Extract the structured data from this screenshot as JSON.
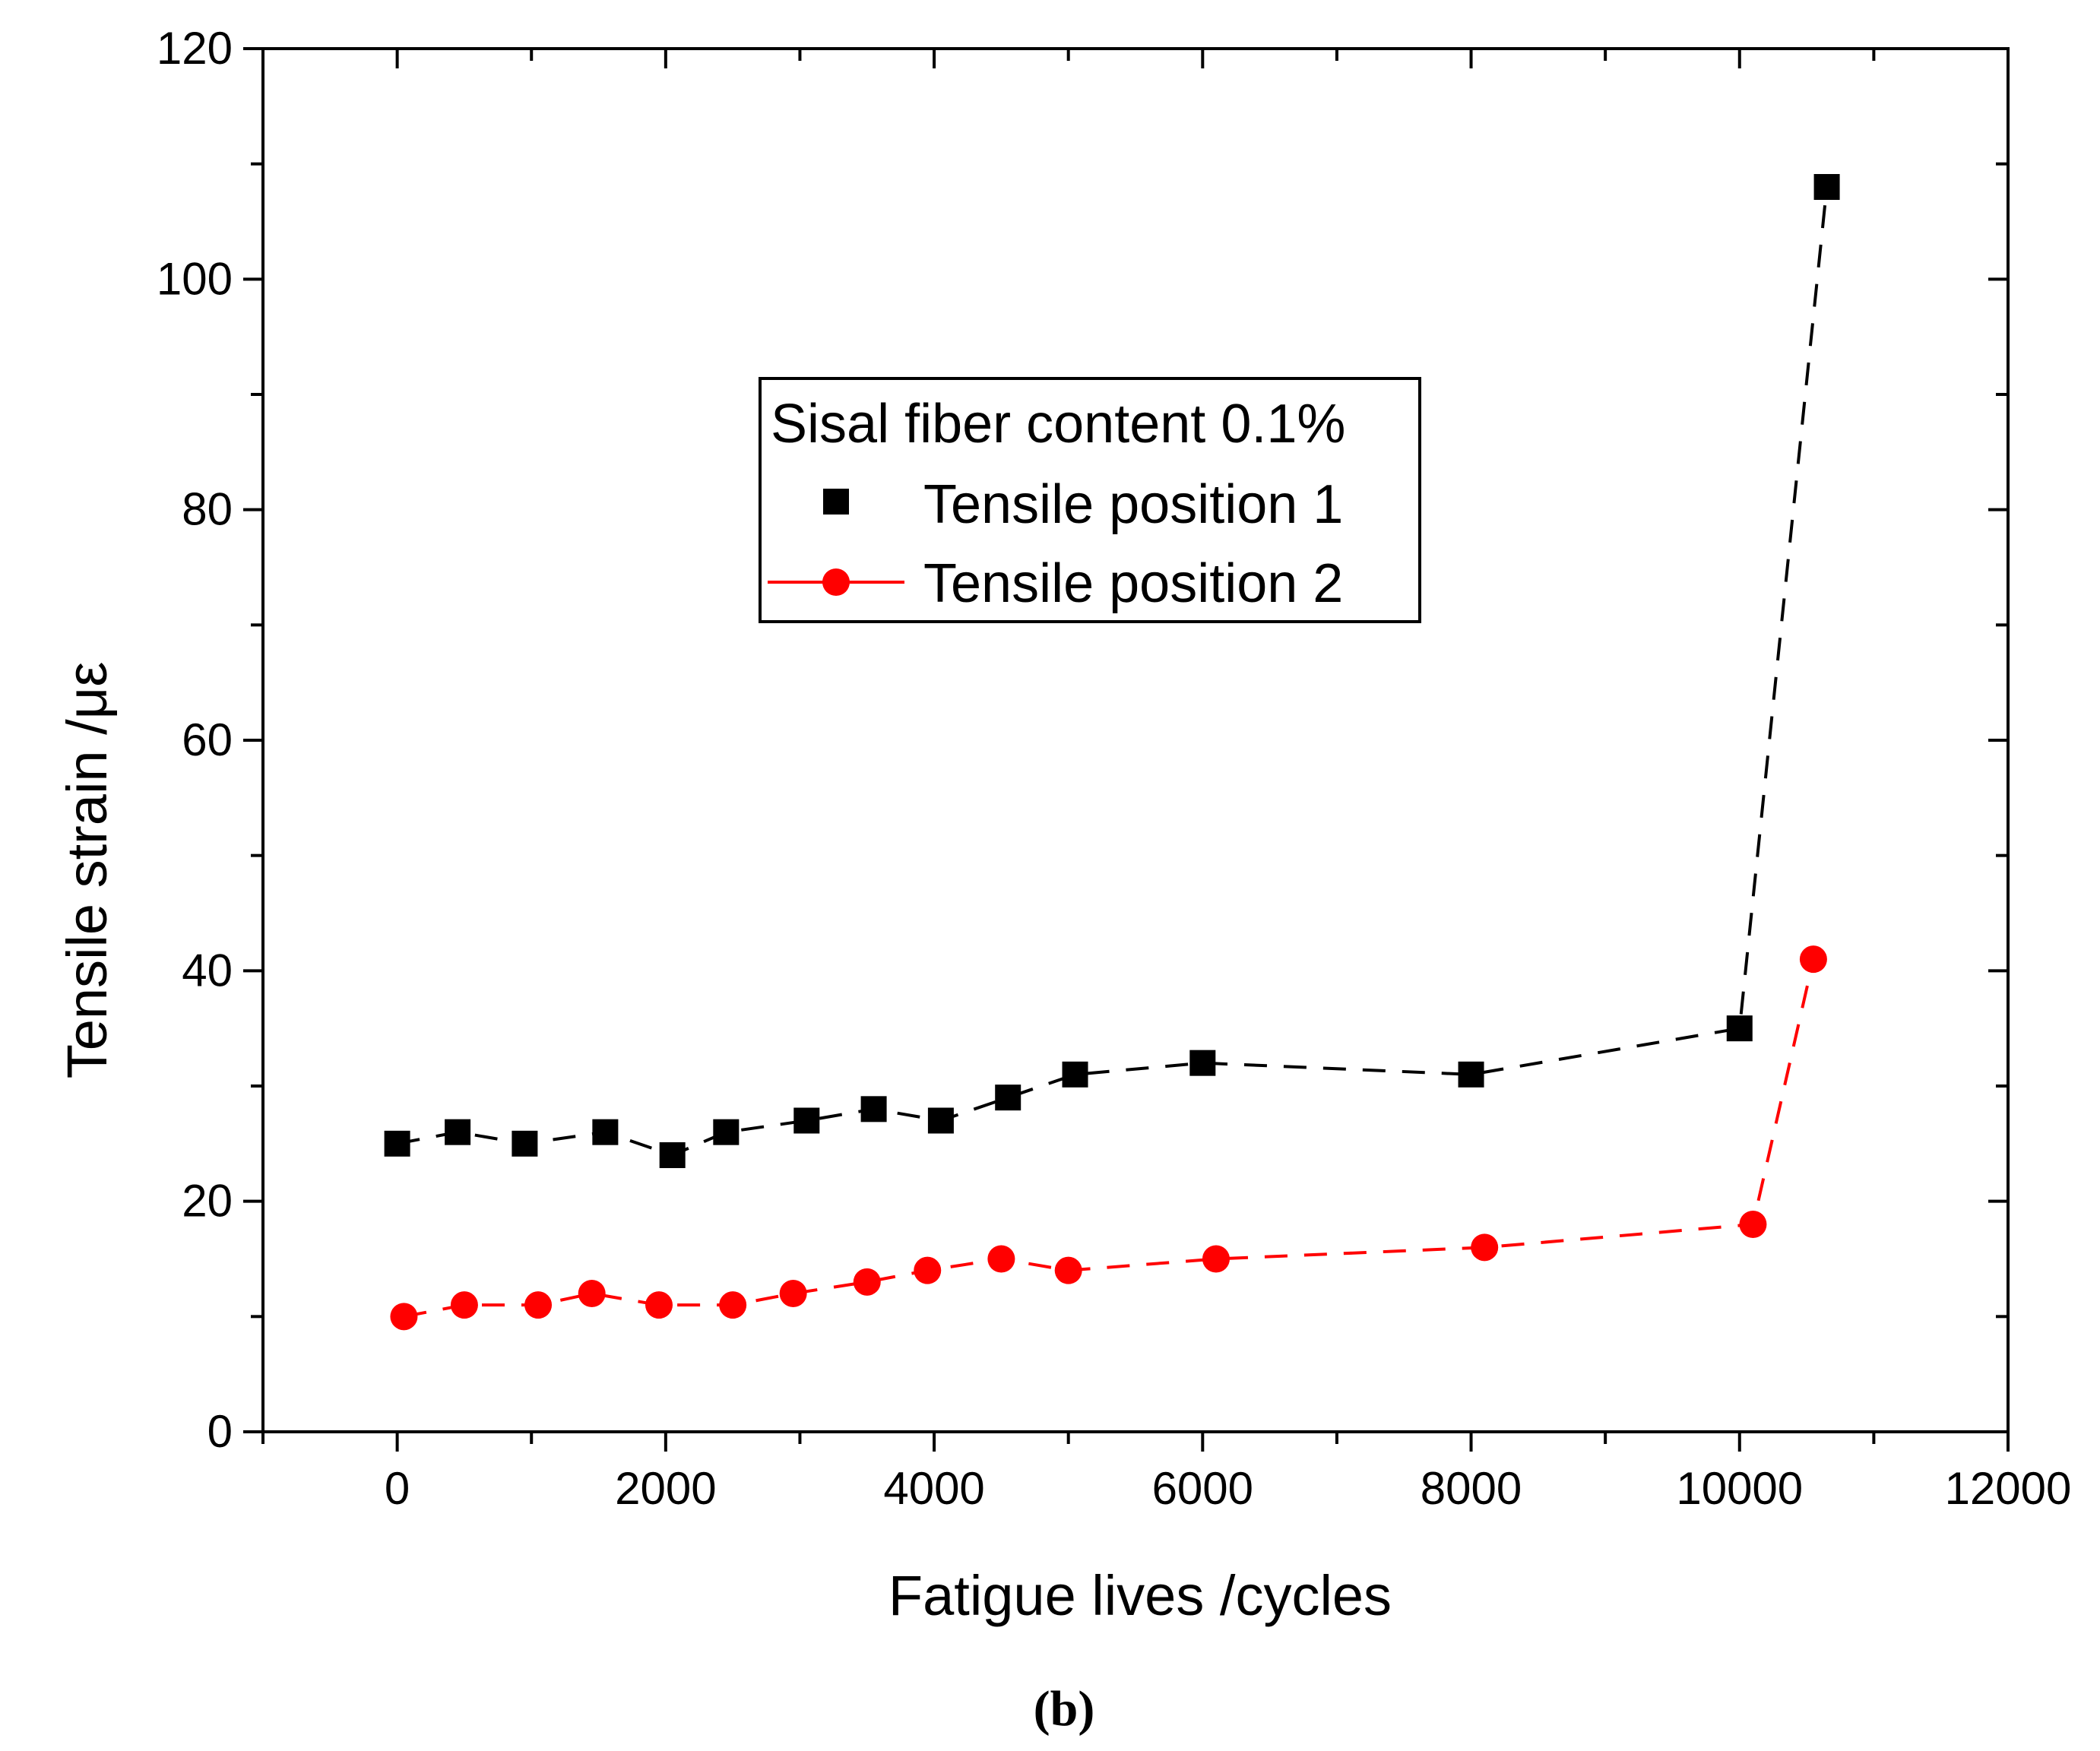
{
  "chart_data": {
    "type": "line",
    "title": "",
    "xlabel": "Fatigue lives   /cycles",
    "ylabel": "Tensile strain   /με",
    "xlim": [
      -1000,
      12000
    ],
    "ylim": [
      0,
      120
    ],
    "x_ticks": [
      0,
      2000,
      4000,
      6000,
      8000,
      10000,
      12000
    ],
    "y_ticks": [
      0,
      20,
      40,
      60,
      80,
      100,
      120
    ],
    "grid": false,
    "legend": {
      "title": "Sisal fiber content 0.1%",
      "placement": "center-top"
    },
    "series": [
      {
        "name": "Tensile position 1",
        "color": "#000000",
        "marker": "square",
        "line_style": "dashed",
        "x": [
          0,
          450,
          950,
          1550,
          2050,
          2450,
          3050,
          3550,
          4050,
          4550,
          5050,
          6000,
          8000,
          10000,
          10650
        ],
        "y": [
          25,
          26,
          25,
          26,
          24,
          26,
          27,
          28,
          27,
          29,
          31,
          32,
          31,
          35,
          108
        ]
      },
      {
        "name": "Tensile position 2",
        "color": "#ff0000",
        "marker": "circle",
        "line_style": "dashed",
        "x": [
          50,
          500,
          1050,
          1450,
          1950,
          2500,
          2950,
          3500,
          3950,
          4500,
          5000,
          6100,
          8100,
          10100,
          10550
        ],
        "y": [
          10,
          11,
          11,
          12,
          11,
          11,
          12,
          13,
          14,
          15,
          14,
          15,
          16,
          18,
          41
        ]
      }
    ]
  },
  "caption": "(b)"
}
